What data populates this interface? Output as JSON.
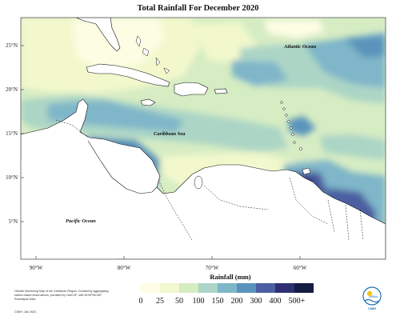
{
  "title": "Total Rainfall For December 2020",
  "ocean_labels": {
    "atlantic": "Atlantic Ocean",
    "caribbean": "Caribbean Sea",
    "pacific": "Pacific Ocean"
  },
  "axes": {
    "lat_ticks": [
      "25°N",
      "20°N",
      "15°N",
      "10°N",
      "5°N"
    ],
    "lon_ticks": [
      "90°W",
      "80°W",
      "70°W",
      "60°W"
    ]
  },
  "legend": {
    "title": "Rainfall (mm)",
    "labels": [
      "0",
      "25",
      "50",
      "100",
      "150",
      "200",
      "300",
      "400",
      "500+"
    ],
    "colors": [
      "#fdfde3",
      "#f2f8cc",
      "#d6ecc3",
      "#acd5c6",
      "#7fb6c9",
      "#5a94bc",
      "#4c5ea1",
      "#2f2f74",
      "#141e40"
    ]
  },
  "footnote": {
    "text": "Climate Monitoring Map of the Caribbean Region. Created by aggregating station based observations, provided by CariCOF, with NCEP/NCAR Reanalysis Data.",
    "date": "CIMH: Jan 2021"
  },
  "logo_caption": "CIMH",
  "colors": {
    "land": "#ffffff",
    "coast": "#111111",
    "frame": "#555555"
  }
}
